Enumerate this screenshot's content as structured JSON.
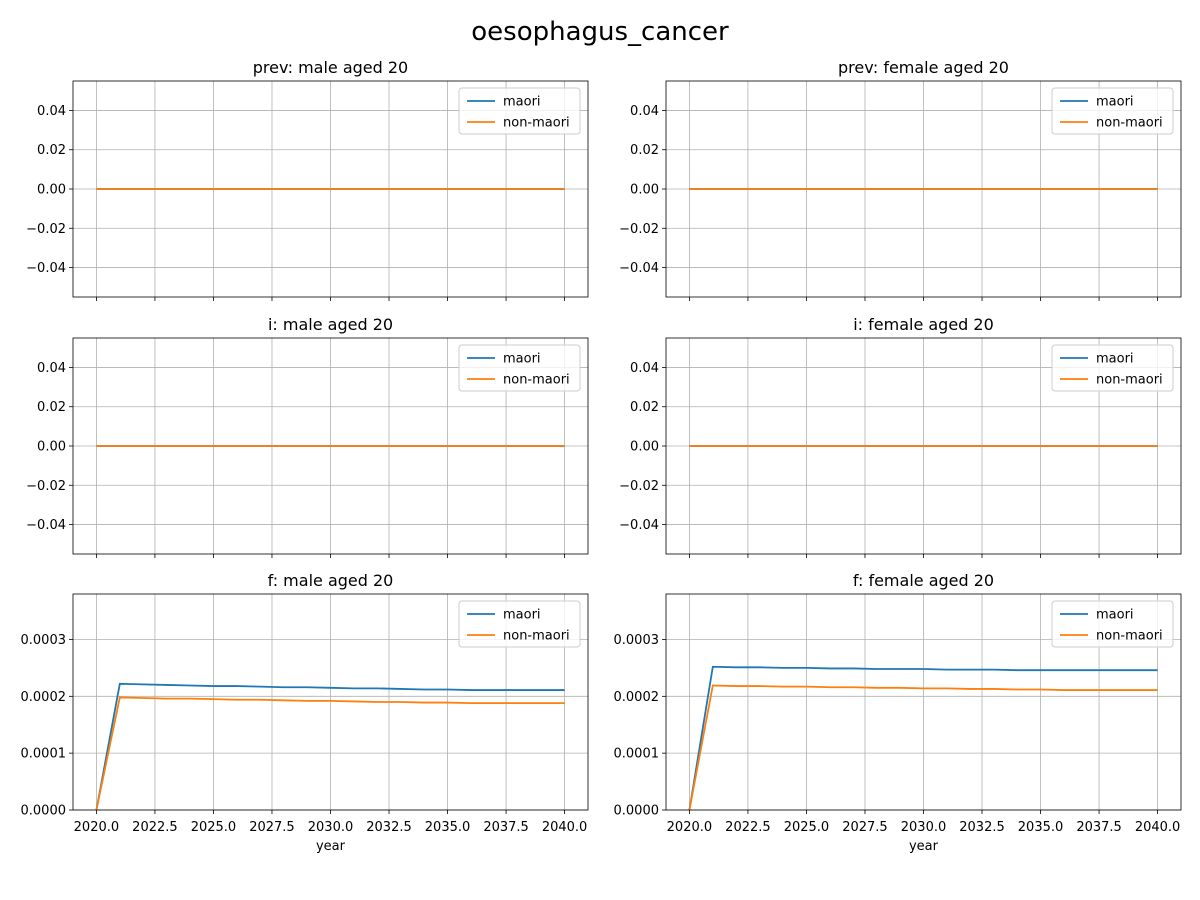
{
  "figure": {
    "suptitle": "oesophagus_cancer"
  },
  "colors": {
    "maori": "#1f77b4",
    "non_maori": "#ff7f0e",
    "grid": "#b0b0b0"
  },
  "chart_data": [
    {
      "type": "line",
      "title": "prev: male aged 20",
      "xlabel": "",
      "ylabel": "",
      "x": [
        2020,
        2021,
        2022,
        2023,
        2024,
        2025,
        2026,
        2027,
        2028,
        2029,
        2030,
        2031,
        2032,
        2033,
        2034,
        2035,
        2036,
        2037,
        2038,
        2039,
        2040
      ],
      "xlim": [
        2019,
        2041
      ],
      "ylim": [
        -0.055,
        0.055
      ],
      "yticks": [
        -0.04,
        -0.02,
        0.0,
        0.02,
        0.04
      ],
      "ytick_labels": [
        "−0.04",
        "−0.02",
        "0.00",
        "0.02",
        "0.04"
      ],
      "xticks": [
        2020,
        2022.5,
        2025,
        2027.5,
        2030,
        2032.5,
        2035,
        2037.5,
        2040
      ],
      "xtick_labels": [],
      "grid": true,
      "legend": "upper right",
      "series": [
        {
          "name": "maori",
          "values": [
            0,
            0,
            0,
            0,
            0,
            0,
            0,
            0,
            0,
            0,
            0,
            0,
            0,
            0,
            0,
            0,
            0,
            0,
            0,
            0,
            0
          ]
        },
        {
          "name": "non-maori",
          "values": [
            0,
            0,
            0,
            0,
            0,
            0,
            0,
            0,
            0,
            0,
            0,
            0,
            0,
            0,
            0,
            0,
            0,
            0,
            0,
            0,
            0
          ]
        }
      ]
    },
    {
      "type": "line",
      "title": "prev: female aged 20",
      "xlabel": "",
      "ylabel": "",
      "x": [
        2020,
        2021,
        2022,
        2023,
        2024,
        2025,
        2026,
        2027,
        2028,
        2029,
        2030,
        2031,
        2032,
        2033,
        2034,
        2035,
        2036,
        2037,
        2038,
        2039,
        2040
      ],
      "xlim": [
        2019,
        2041
      ],
      "ylim": [
        -0.055,
        0.055
      ],
      "yticks": [
        -0.04,
        -0.02,
        0.0,
        0.02,
        0.04
      ],
      "ytick_labels": [
        "−0.04",
        "−0.02",
        "0.00",
        "0.02",
        "0.04"
      ],
      "xticks": [
        2020,
        2022.5,
        2025,
        2027.5,
        2030,
        2032.5,
        2035,
        2037.5,
        2040
      ],
      "xtick_labels": [],
      "grid": true,
      "legend": "upper right",
      "series": [
        {
          "name": "maori",
          "values": [
            0,
            0,
            0,
            0,
            0,
            0,
            0,
            0,
            0,
            0,
            0,
            0,
            0,
            0,
            0,
            0,
            0,
            0,
            0,
            0,
            0
          ]
        },
        {
          "name": "non-maori",
          "values": [
            0,
            0,
            0,
            0,
            0,
            0,
            0,
            0,
            0,
            0,
            0,
            0,
            0,
            0,
            0,
            0,
            0,
            0,
            0,
            0,
            0
          ]
        }
      ]
    },
    {
      "type": "line",
      "title": "i: male aged 20",
      "xlabel": "",
      "ylabel": "",
      "x": [
        2020,
        2021,
        2022,
        2023,
        2024,
        2025,
        2026,
        2027,
        2028,
        2029,
        2030,
        2031,
        2032,
        2033,
        2034,
        2035,
        2036,
        2037,
        2038,
        2039,
        2040
      ],
      "xlim": [
        2019,
        2041
      ],
      "ylim": [
        -0.055,
        0.055
      ],
      "yticks": [
        -0.04,
        -0.02,
        0.0,
        0.02,
        0.04
      ],
      "ytick_labels": [
        "−0.04",
        "−0.02",
        "0.00",
        "0.02",
        "0.04"
      ],
      "xticks": [
        2020,
        2022.5,
        2025,
        2027.5,
        2030,
        2032.5,
        2035,
        2037.5,
        2040
      ],
      "xtick_labels": [],
      "grid": true,
      "legend": "upper right",
      "series": [
        {
          "name": "maori",
          "values": [
            0,
            0,
            0,
            0,
            0,
            0,
            0,
            0,
            0,
            0,
            0,
            0,
            0,
            0,
            0,
            0,
            0,
            0,
            0,
            0,
            0
          ]
        },
        {
          "name": "non-maori",
          "values": [
            0,
            0,
            0,
            0,
            0,
            0,
            0,
            0,
            0,
            0,
            0,
            0,
            0,
            0,
            0,
            0,
            0,
            0,
            0,
            0,
            0
          ]
        }
      ]
    },
    {
      "type": "line",
      "title": "i: female aged 20",
      "xlabel": "",
      "ylabel": "",
      "x": [
        2020,
        2021,
        2022,
        2023,
        2024,
        2025,
        2026,
        2027,
        2028,
        2029,
        2030,
        2031,
        2032,
        2033,
        2034,
        2035,
        2036,
        2037,
        2038,
        2039,
        2040
      ],
      "xlim": [
        2019,
        2041
      ],
      "ylim": [
        -0.055,
        0.055
      ],
      "yticks": [
        -0.04,
        -0.02,
        0.0,
        0.02,
        0.04
      ],
      "ytick_labels": [
        "−0.04",
        "−0.02",
        "0.00",
        "0.02",
        "0.04"
      ],
      "xticks": [
        2020,
        2022.5,
        2025,
        2027.5,
        2030,
        2032.5,
        2035,
        2037.5,
        2040
      ],
      "xtick_labels": [],
      "grid": true,
      "legend": "upper right",
      "series": [
        {
          "name": "maori",
          "values": [
            0,
            0,
            0,
            0,
            0,
            0,
            0,
            0,
            0,
            0,
            0,
            0,
            0,
            0,
            0,
            0,
            0,
            0,
            0,
            0,
            0
          ]
        },
        {
          "name": "non-maori",
          "values": [
            0,
            0,
            0,
            0,
            0,
            0,
            0,
            0,
            0,
            0,
            0,
            0,
            0,
            0,
            0,
            0,
            0,
            0,
            0,
            0,
            0
          ]
        }
      ]
    },
    {
      "type": "line",
      "title": "f: male aged 20",
      "xlabel": "year",
      "ylabel": "",
      "x": [
        2020,
        2021,
        2022,
        2023,
        2024,
        2025,
        2026,
        2027,
        2028,
        2029,
        2030,
        2031,
        2032,
        2033,
        2034,
        2035,
        2036,
        2037,
        2038,
        2039,
        2040
      ],
      "xlim": [
        2019,
        2041
      ],
      "ylim": [
        0,
        0.00038
      ],
      "yticks": [
        0,
        0.0001,
        0.0002,
        0.0003
      ],
      "ytick_labels": [
        "0.0000",
        "0.0001",
        "0.0002",
        "0.0003"
      ],
      "xticks": [
        2020,
        2022.5,
        2025,
        2027.5,
        2030,
        2032.5,
        2035,
        2037.5,
        2040
      ],
      "xtick_labels": [
        "2020.0",
        "2022.5",
        "2025.0",
        "2027.5",
        "2030.0",
        "2032.5",
        "2035.0",
        "2037.5",
        "2040.0"
      ],
      "grid": true,
      "legend": "upper right",
      "series": [
        {
          "name": "maori",
          "values": [
            0,
            0.000222,
            0.000221,
            0.00022,
            0.000219,
            0.000218,
            0.000218,
            0.000217,
            0.000216,
            0.000216,
            0.000215,
            0.000214,
            0.000214,
            0.000213,
            0.000212,
            0.000212,
            0.000211,
            0.000211,
            0.000211,
            0.000211,
            0.000211
          ]
        },
        {
          "name": "non-maori",
          "values": [
            0,
            0.000198,
            0.000197,
            0.000196,
            0.000196,
            0.000195,
            0.000194,
            0.000194,
            0.000193,
            0.000192,
            0.000192,
            0.000191,
            0.00019,
            0.00019,
            0.000189,
            0.000189,
            0.000188,
            0.000188,
            0.000188,
            0.000188,
            0.000188
          ]
        }
      ]
    },
    {
      "type": "line",
      "title": "f: female aged 20",
      "xlabel": "year",
      "ylabel": "",
      "x": [
        2020,
        2021,
        2022,
        2023,
        2024,
        2025,
        2026,
        2027,
        2028,
        2029,
        2030,
        2031,
        2032,
        2033,
        2034,
        2035,
        2036,
        2037,
        2038,
        2039,
        2040
      ],
      "xlim": [
        2019,
        2041
      ],
      "ylim": [
        0,
        0.00038
      ],
      "yticks": [
        0,
        0.0001,
        0.0002,
        0.0003
      ],
      "ytick_labels": [
        "0.0000",
        "0.0001",
        "0.0002",
        "0.0003"
      ],
      "xticks": [
        2020,
        2022.5,
        2025,
        2027.5,
        2030,
        2032.5,
        2035,
        2037.5,
        2040
      ],
      "xtick_labels": [
        "2020.0",
        "2022.5",
        "2025.0",
        "2027.5",
        "2030.0",
        "2032.5",
        "2035.0",
        "2037.5",
        "2040.0"
      ],
      "grid": true,
      "legend": "upper right",
      "series": [
        {
          "name": "maori",
          "values": [
            0,
            0.000252,
            0.000251,
            0.000251,
            0.00025,
            0.00025,
            0.000249,
            0.000249,
            0.000248,
            0.000248,
            0.000248,
            0.000247,
            0.000247,
            0.000247,
            0.000246,
            0.000246,
            0.000246,
            0.000246,
            0.000246,
            0.000246,
            0.000246
          ]
        },
        {
          "name": "non-maori",
          "values": [
            0,
            0.000219,
            0.000218,
            0.000218,
            0.000217,
            0.000217,
            0.000216,
            0.000216,
            0.000215,
            0.000215,
            0.000214,
            0.000214,
            0.000213,
            0.000213,
            0.000212,
            0.000212,
            0.000211,
            0.000211,
            0.000211,
            0.000211,
            0.000211
          ]
        }
      ]
    }
  ]
}
